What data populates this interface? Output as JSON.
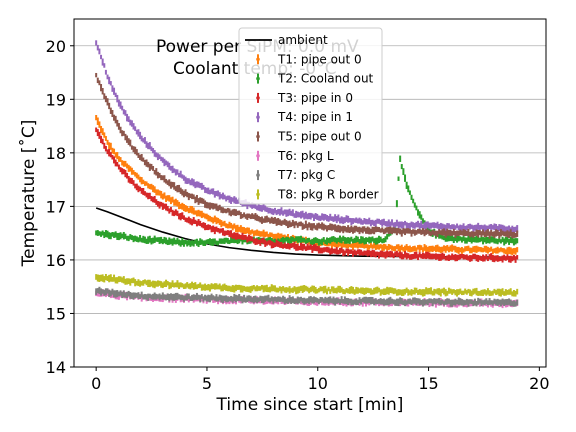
{
  "chart_data": {
    "type": "scatter",
    "xlabel": "Time since start [min]",
    "ylabel": "Temperature [˚C]",
    "xlim": [
      -1,
      20.3
    ],
    "ylim": [
      14,
      20.5
    ],
    "xticks": [
      0,
      5,
      10,
      15,
      20
    ],
    "yticks": [
      14,
      15,
      16,
      17,
      18,
      19,
      20
    ],
    "grid": "horizontal",
    "legend_position": "top-center",
    "annotations": [
      "Power per SiPM: 0.0 mV",
      "Coolant temp: -0°C"
    ],
    "series": [
      {
        "name": "ambient",
        "style": "line",
        "color": "#000000",
        "x": [
          0,
          0.5,
          1,
          1.5,
          2,
          3,
          4,
          5,
          6,
          7,
          8,
          9,
          10,
          12,
          15,
          19
        ],
        "y": [
          16.97,
          16.9,
          16.82,
          16.74,
          16.66,
          16.52,
          16.4,
          16.3,
          16.23,
          16.18,
          16.14,
          16.11,
          16.09,
          16.07,
          16.06,
          16.05
        ]
      },
      {
        "name": "T1: pipe out 0",
        "style": "errorbar",
        "color": "#ff7f0e",
        "x": [
          0,
          0.5,
          1,
          1.5,
          2,
          3,
          4,
          5,
          6,
          7,
          8,
          9,
          10,
          12,
          14,
          16,
          19
        ],
        "y": [
          18.65,
          18.2,
          17.9,
          17.7,
          17.5,
          17.2,
          16.98,
          16.8,
          16.64,
          16.52,
          16.44,
          16.38,
          16.32,
          16.26,
          16.22,
          16.2,
          16.17
        ]
      },
      {
        "name": "T2: Cooland out",
        "style": "errorbar",
        "color": "#2ca02c",
        "x": [
          0,
          1,
          2,
          3,
          4,
          5,
          6,
          7,
          8,
          9,
          10,
          11,
          12,
          13,
          13.5,
          13.7,
          14,
          14.5,
          15,
          15.5,
          16,
          17,
          19
        ],
        "y": [
          16.5,
          16.45,
          16.38,
          16.35,
          16.32,
          16.32,
          16.35,
          16.38,
          16.35,
          16.38,
          16.35,
          16.38,
          16.36,
          16.38,
          16.6,
          17.9,
          17.4,
          16.9,
          16.55,
          16.45,
          16.4,
          16.38,
          16.35
        ]
      },
      {
        "name": "T3: pipe in 0",
        "style": "errorbar",
        "color": "#d62728",
        "x": [
          0,
          0.5,
          1,
          1.5,
          2,
          3,
          4,
          5,
          6,
          7,
          8,
          9,
          10,
          12,
          14,
          16,
          19
        ],
        "y": [
          18.45,
          18.05,
          17.75,
          17.5,
          17.3,
          17.0,
          16.78,
          16.62,
          16.48,
          16.38,
          16.3,
          16.25,
          16.2,
          16.12,
          16.08,
          16.05,
          16.03
        ]
      },
      {
        "name": "T4: pipe in 1",
        "style": "errorbar",
        "color": "#9467bd",
        "x": [
          0,
          0.5,
          1,
          1.5,
          2,
          3,
          4,
          5,
          6,
          7,
          8,
          9,
          10,
          12,
          14,
          16,
          19
        ],
        "y": [
          20.05,
          19.45,
          18.95,
          18.6,
          18.3,
          17.85,
          17.52,
          17.3,
          17.14,
          17.02,
          16.92,
          16.85,
          16.8,
          16.72,
          16.66,
          16.62,
          16.58
        ]
      },
      {
        "name": "T5: pipe out 0",
        "style": "errorbar",
        "color": "#8c564b",
        "x": [
          0,
          0.5,
          1,
          1.5,
          2,
          3,
          4,
          5,
          6,
          7,
          8,
          9,
          10,
          12,
          14,
          16,
          19
        ],
        "y": [
          19.45,
          18.95,
          18.5,
          18.18,
          17.92,
          17.52,
          17.24,
          17.04,
          16.9,
          16.8,
          16.72,
          16.66,
          16.62,
          16.56,
          16.52,
          16.5,
          16.48
        ]
      },
      {
        "name": "T6: pkg L",
        "style": "errorbar",
        "color": "#e377c2",
        "x": [
          0,
          2,
          4,
          6,
          8,
          10,
          12,
          14,
          16,
          19
        ],
        "y": [
          15.38,
          15.3,
          15.28,
          15.25,
          15.24,
          15.22,
          15.21,
          15.2,
          15.2,
          15.18
        ]
      },
      {
        "name": "T7: pkg C",
        "style": "errorbar",
        "color": "#7f7f7f",
        "x": [
          0,
          2,
          4,
          6,
          8,
          10,
          12,
          14,
          16,
          19
        ],
        "y": [
          15.42,
          15.33,
          15.3,
          15.28,
          15.26,
          15.24,
          15.23,
          15.22,
          15.21,
          15.2
        ]
      },
      {
        "name": "T8: pkg R border",
        "style": "errorbar",
        "color": "#bcbd22",
        "x": [
          0,
          2,
          4,
          6,
          8,
          10,
          12,
          14,
          16,
          19
        ],
        "y": [
          15.68,
          15.58,
          15.52,
          15.48,
          15.46,
          15.44,
          15.42,
          15.41,
          15.4,
          15.39
        ]
      }
    ]
  }
}
